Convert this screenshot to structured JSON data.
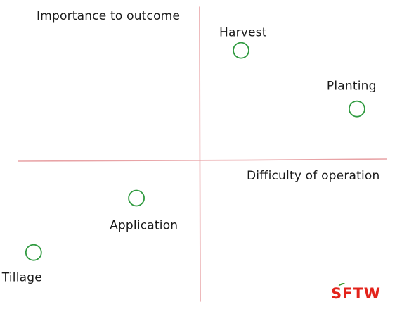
{
  "chart_data": {
    "type": "scatter",
    "title": "",
    "xlabel": "Difficulty of operation",
    "ylabel": "Importance to outcome",
    "xlim": [
      -1,
      1
    ],
    "ylim": [
      -1,
      1
    ],
    "grid": false,
    "points": [
      {
        "label": "Harvest",
        "x": 0.22,
        "y": 0.79
      },
      {
        "label": "Planting",
        "x": 0.84,
        "y": 0.37
      },
      {
        "label": "Application",
        "x": -0.34,
        "y": -0.27
      },
      {
        "label": "Tillage",
        "x": -0.89,
        "y": -0.66
      }
    ]
  },
  "colors": {
    "axis": "#e8a3a6",
    "marker": "#2f9a3f",
    "text": "#1a1a1a",
    "logo_red": "#e3231b",
    "logo_green": "#3a9a2f"
  },
  "logo": {
    "text": "SFTW"
  }
}
